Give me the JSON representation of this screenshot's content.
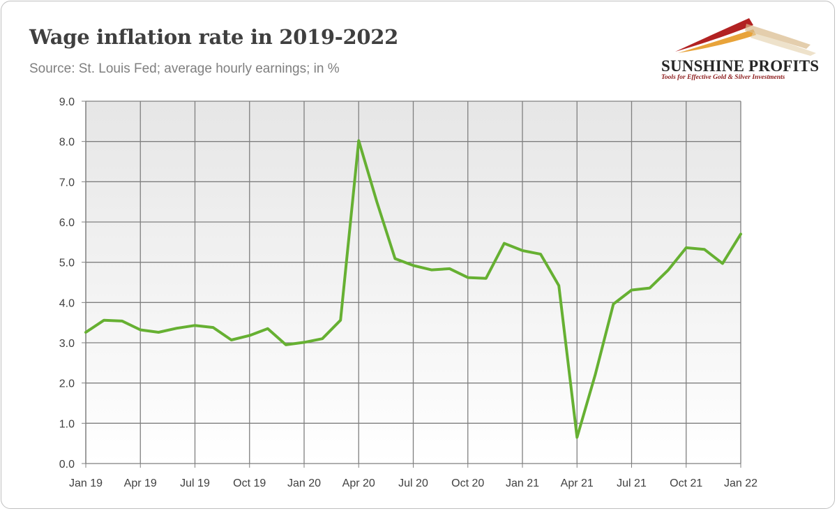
{
  "header": {
    "title": "Wage inflation rate in 2019-2022",
    "subtitle": "Source: St. Louis Fed; average hourly earnings; in %"
  },
  "logo": {
    "name": "SUNSHINE PROFITS",
    "tagline": "Tools for Effective Gold & Silver Investments",
    "colors": [
      "#b22222",
      "#e8a33a",
      "#c9a06a"
    ]
  },
  "chart_data": {
    "type": "line",
    "title": "Wage inflation rate in 2019-2022",
    "subtitle": "Source: St. Louis Fed; average hourly earnings; in %",
    "xlabel": "",
    "ylabel": "",
    "ylim": [
      0,
      9
    ],
    "yticks": [
      "0.0",
      "1.0",
      "2.0",
      "3.0",
      "4.0",
      "5.0",
      "6.0",
      "7.0",
      "8.0",
      "9.0"
    ],
    "xticks": [
      "Jan 19",
      "Apr 19",
      "Jul 19",
      "Oct 19",
      "Jan 20",
      "Apr 20",
      "Jul 20",
      "Oct 20",
      "Jan 21",
      "Apr 21",
      "Jul 21",
      "Oct 21",
      "Jan 22"
    ],
    "grid": true,
    "legend": "none",
    "line_color": "#66b032",
    "background_gradient": [
      "#e6e6e6",
      "#ffffff"
    ],
    "series": [
      {
        "x": [
          "2019-01",
          "2019-02",
          "2019-03",
          "2019-04",
          "2019-05",
          "2019-06",
          "2019-07",
          "2019-08",
          "2019-09",
          "2019-10",
          "2019-11",
          "2019-12",
          "2020-01",
          "2020-02",
          "2020-03",
          "2020-04",
          "2020-05",
          "2020-06",
          "2020-07",
          "2020-08",
          "2020-09",
          "2020-10",
          "2020-11",
          "2020-12",
          "2021-01",
          "2021-02",
          "2021-03",
          "2021-04",
          "2021-05",
          "2021-06",
          "2021-07",
          "2021-08",
          "2021-09",
          "2021-10",
          "2021-11",
          "2021-12",
          "2022-01"
        ],
        "values": [
          3.26,
          3.56,
          3.54,
          3.32,
          3.26,
          3.36,
          3.43,
          3.38,
          3.07,
          3.18,
          3.35,
          2.95,
          3.01,
          3.1,
          3.56,
          8.02,
          6.5,
          5.09,
          4.92,
          4.81,
          4.84,
          4.62,
          4.6,
          5.47,
          5.29,
          5.2,
          4.42,
          0.65,
          2.2,
          3.96,
          4.31,
          4.36,
          4.8,
          5.36,
          5.32,
          4.97,
          5.7
        ]
      }
    ]
  }
}
